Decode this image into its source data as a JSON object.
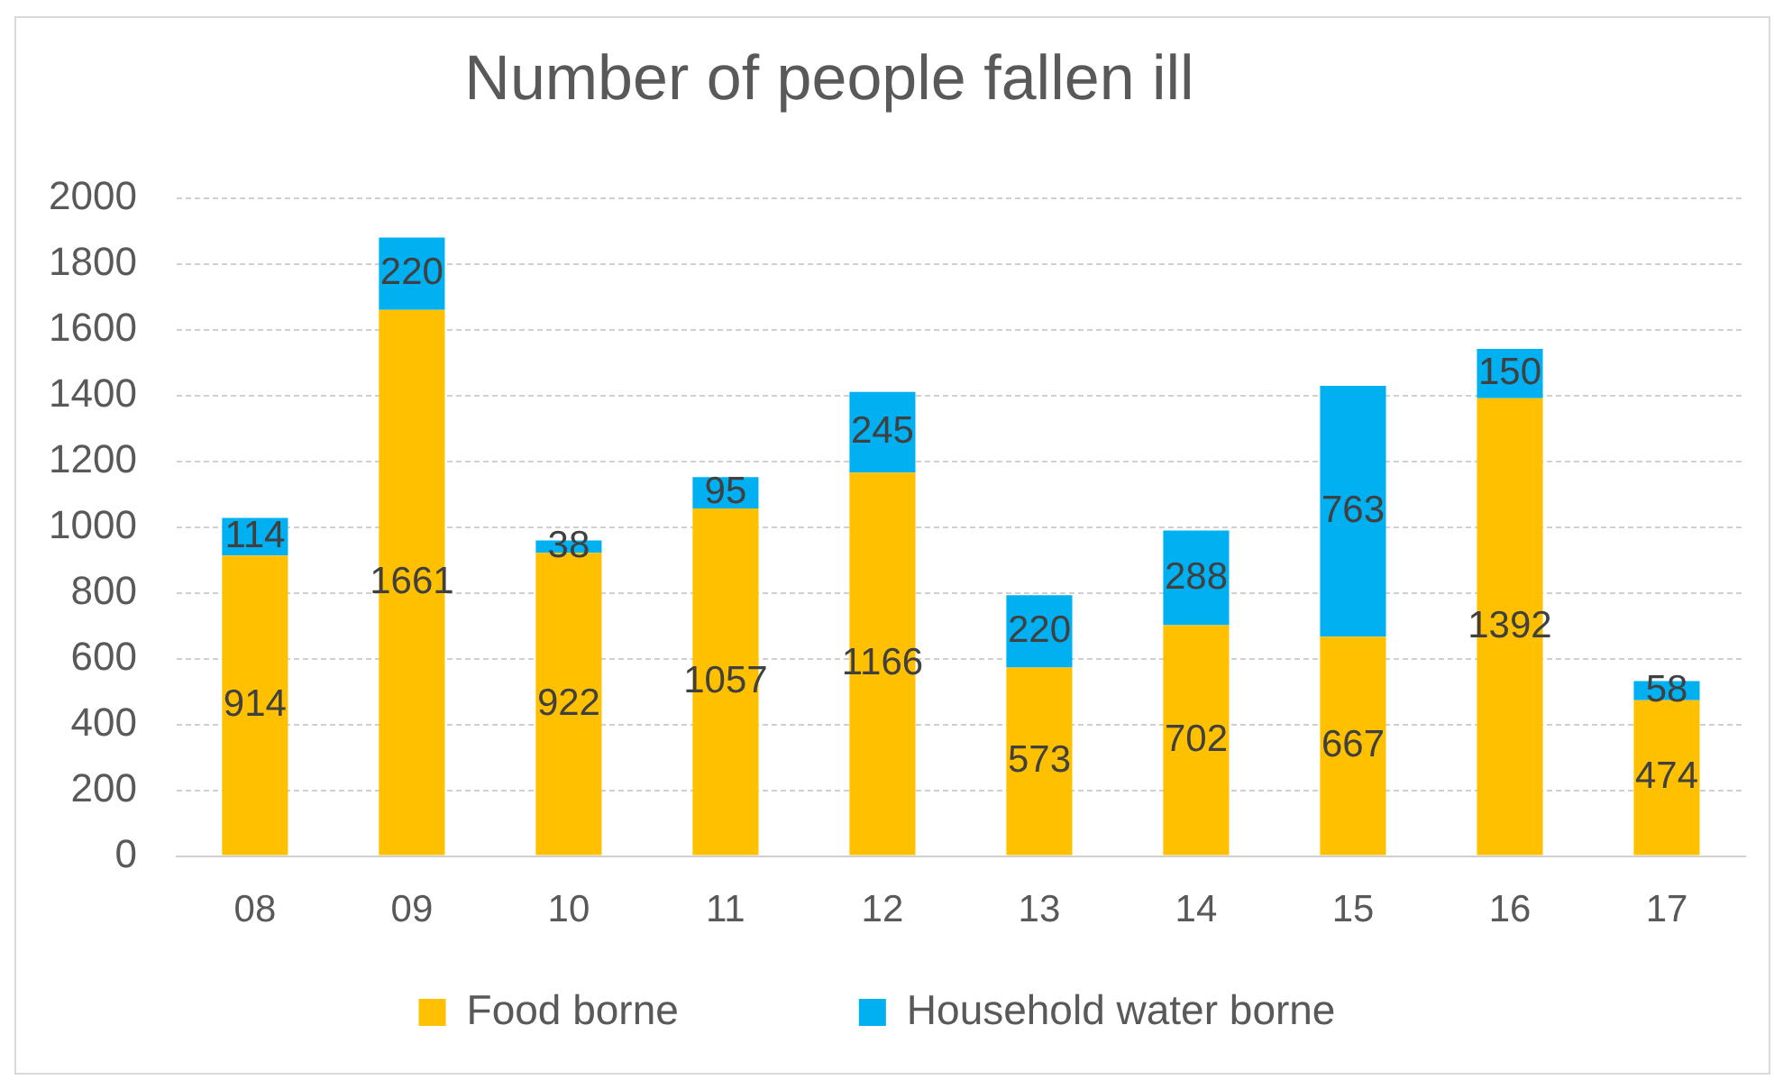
{
  "chart_data": {
    "type": "bar",
    "title": "Number of people fallen ill",
    "categories": [
      "08",
      "09",
      "10",
      "11",
      "12",
      "13",
      "14",
      "15",
      "16",
      "17"
    ],
    "stacked": true,
    "series": [
      {
        "name": "Food borne",
        "color": "#ffc000",
        "values": [
          914,
          1661,
          922,
          1057,
          1166,
          573,
          702,
          667,
          1392,
          474
        ]
      },
      {
        "name": "Household water borne",
        "color": "#00b0f0",
        "values": [
          114,
          220,
          38,
          95,
          245,
          220,
          288,
          763,
          150,
          58
        ]
      }
    ],
    "ylim": [
      0,
      2000
    ],
    "yticks": [
      0,
      200,
      400,
      600,
      800,
      1000,
      1200,
      1400,
      1600,
      1800,
      2000
    ],
    "grid": "y",
    "legend": "bottom",
    "data_labels": true
  }
}
